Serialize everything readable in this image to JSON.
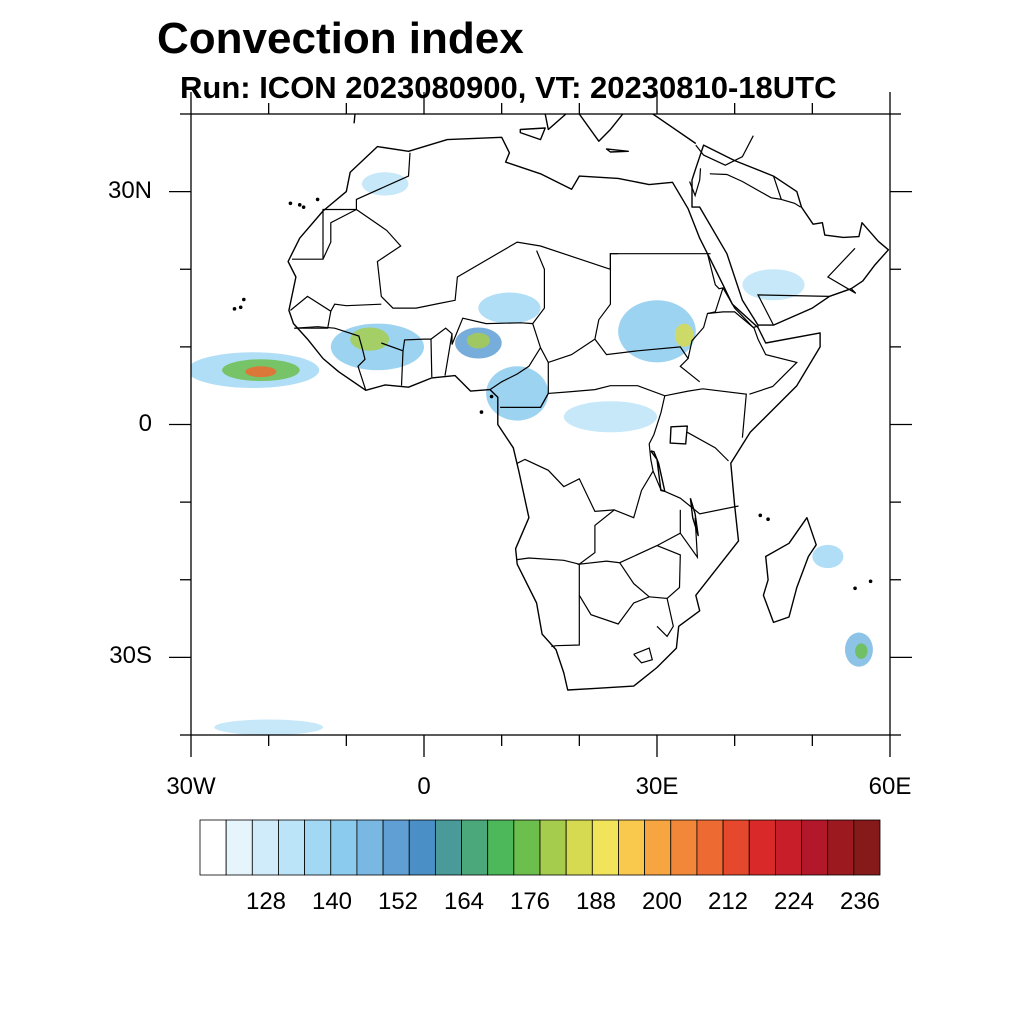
{
  "title": "Convection index",
  "subtitle": "Run: ICON 2023080900,  VT: 20230810-18UTC",
  "map": {
    "lon_range": [
      -30,
      60
    ],
    "lat_range": [
      -40,
      40
    ],
    "lon_ticks": [
      {
        "lon": -30,
        "label": "30W"
      },
      {
        "lon": 0,
        "label": "0"
      },
      {
        "lon": 30,
        "label": "30E"
      },
      {
        "lon": 60,
        "label": "60E"
      }
    ],
    "lat_ticks": [
      {
        "lat": 30,
        "label": "30N"
      },
      {
        "lat": 0,
        "label": "0"
      },
      {
        "lat": -30,
        "label": "30S"
      }
    ],
    "minor_lon_step": 10,
    "minor_lat_step": 10,
    "coastline_color": "#000000",
    "border_color": "#000000"
  },
  "colorbar": {
    "colors": [
      "#ffffff",
      "#e6f4fc",
      "#d0ecfa",
      "#bce4f8",
      "#a2d8f4",
      "#8bcbee",
      "#7ab8e4",
      "#5f9fd3",
      "#4a8fc6",
      "#4a9a9a",
      "#4aa87a",
      "#4cb85a",
      "#6cbf4d",
      "#a6cc4d",
      "#d6da50",
      "#f1e45a",
      "#f9c94d",
      "#f7a541",
      "#f2873a",
      "#ee6a33",
      "#e5482c",
      "#d92a29",
      "#c71e2a",
      "#b3182a",
      "#9c1a1f",
      "#861a1a"
    ],
    "labels": [
      "128",
      "140",
      "152",
      "164",
      "176",
      "188",
      "200",
      "212",
      "224",
      "236"
    ],
    "label_positions": [
      2,
      5,
      8,
      11,
      14,
      17,
      20,
      23,
      26,
      29
    ]
  },
  "convection_regions": [
    {
      "name": "atlantic-itcz",
      "lon": -22,
      "lat": 7,
      "rx": 8.5,
      "ry": 2.3,
      "level": 4
    },
    {
      "name": "atlantic-itcz-core",
      "lon": -21,
      "lat": 7,
      "rx": 5,
      "ry": 1.4,
      "level": 12
    },
    {
      "name": "atlantic-itcz-peak",
      "lon": -21,
      "lat": 6.8,
      "rx": 2,
      "ry": 0.7,
      "level": 19
    },
    {
      "name": "west-africa",
      "lon": -6,
      "lat": 10,
      "rx": 6,
      "ry": 3,
      "level": 5
    },
    {
      "name": "west-africa-core",
      "lon": -7,
      "lat": 11,
      "rx": 2.5,
      "ry": 1.5,
      "level": 13
    },
    {
      "name": "nigeria",
      "lon": 7,
      "lat": 10.5,
      "rx": 3,
      "ry": 2,
      "level": 7
    },
    {
      "name": "nigeria-core",
      "lon": 7,
      "lat": 10.8,
      "rx": 1.5,
      "ry": 1,
      "level": 13
    },
    {
      "name": "chad-niger",
      "lon": 11,
      "lat": 15,
      "rx": 4,
      "ry": 2,
      "level": 4
    },
    {
      "name": "central-africa",
      "lon": 12,
      "lat": 4,
      "rx": 4,
      "ry": 3.5,
      "level": 5
    },
    {
      "name": "sudan",
      "lon": 30,
      "lat": 12,
      "rx": 5,
      "ry": 4,
      "level": 5
    },
    {
      "name": "ethiopia-core",
      "lon": 33.5,
      "lat": 11.5,
      "rx": 1.2,
      "ry": 1.5,
      "level": 14
    },
    {
      "name": "drc",
      "lon": 24,
      "lat": 1,
      "rx": 6,
      "ry": 2,
      "level": 3
    },
    {
      "name": "madagascar-east",
      "lon": 52,
      "lat": -17,
      "rx": 2,
      "ry": 1.5,
      "level": 4
    },
    {
      "name": "mauritius",
      "lon": 56,
      "lat": -29,
      "rx": 1.8,
      "ry": 2.2,
      "level": 6
    },
    {
      "name": "mauritius-core",
      "lon": 56.3,
      "lat": -29.2,
      "rx": 0.8,
      "ry": 1,
      "level": 12
    },
    {
      "name": "arabia",
      "lon": 45,
      "lat": 18,
      "rx": 4,
      "ry": 2,
      "level": 3
    },
    {
      "name": "north-africa",
      "lon": -5,
      "lat": 31,
      "rx": 3,
      "ry": 1.5,
      "level": 3
    },
    {
      "name": "south-atlantic",
      "lon": -20,
      "lat": -39,
      "rx": 7,
      "ry": 1,
      "level": 3
    }
  ]
}
